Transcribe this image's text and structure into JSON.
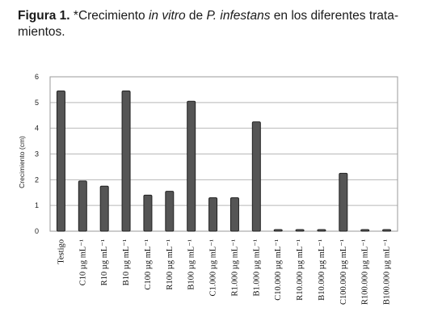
{
  "caption": {
    "label": "Figura 1.",
    "t1": " *Crecimiento ",
    "t2": "in vitro",
    "t3": " de ",
    "t4": "P. infestans",
    "t5": " en los diferentes trata-",
    "t6": "mientos."
  },
  "chart_data": {
    "type": "bar",
    "ylabel": "Crecimiento (cm)",
    "ylim": [
      0,
      6
    ],
    "yticks": [
      "0",
      "1",
      "2",
      "3",
      "4",
      "5",
      "6"
    ],
    "grid": true,
    "categories": [
      "Testigo",
      "C10 µg mL⁻¹",
      "R10 µg mL⁻¹",
      "B10 µg mL⁻¹",
      "C100 µg mL⁻¹",
      "R100 µg mL⁻¹",
      "B100 µg mL⁻¹",
      "C1.000 µg mL⁻¹",
      "R1.000 µg mL⁻¹",
      "B1.000 µg mL⁻¹",
      "C10.000 µg mL⁻¹",
      "R10.000 µg mL⁻¹",
      "B10.000 µg mL⁻¹",
      "C100.000 µg mL⁻¹",
      "R100.000 µg mL⁻¹",
      "B100.000 µg mL⁻¹"
    ],
    "values": [
      5.45,
      1.95,
      1.75,
      5.45,
      1.4,
      1.55,
      5.05,
      1.3,
      1.3,
      4.25,
      0.05,
      0.05,
      0.05,
      2.25,
      0.05,
      0.05
    ],
    "colors": {
      "bar": "#555555",
      "bar_edge": "#222222",
      "grid": "#b8b8b8",
      "frame": "#9a9a9a"
    }
  }
}
